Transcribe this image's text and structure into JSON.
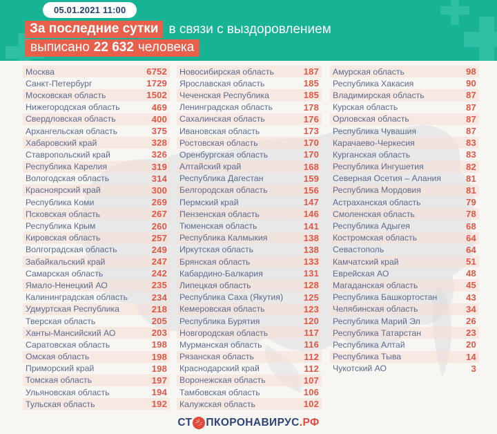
{
  "header": {
    "date_badge": "05.01.2021 11:00",
    "headline_highlight": "За последние сутки",
    "headline_rest": "в связи с выздоровлением",
    "line2_prefix": "выписано",
    "line2_number": "22 632",
    "line2_suffix": "человека"
  },
  "footer": {
    "logo_prefix": "СТ",
    "logo_middle": "ПКОРОНАВИРУС",
    "logo_suffix": ".РФ"
  },
  "colors": {
    "header_green": "#17b394",
    "plus_green": "#2ebfa2",
    "highlight_orange": "#e8604c",
    "value_red": "#e15746",
    "region_blue": "#5b6b8d",
    "logo_navy": "#2c4479",
    "logo_red": "#e2493c",
    "stripe_pink": "#f7e9e3",
    "map_gray": "#d7d9de"
  },
  "chart_data": {
    "type": "table",
    "title": "За последние сутки в связи с выздоровлением выписано 22 632 человека",
    "timestamp": "05.01.2021 11:00",
    "total_discharged": 22632,
    "columns": [
      "Регион",
      "Выписано"
    ],
    "column_groups": [
      {
        "rows": [
          [
            "Москва",
            6752
          ],
          [
            "Санкт-Петербург",
            1729
          ],
          [
            "Московская область",
            1502
          ],
          [
            "Нижегородская область",
            469
          ],
          [
            "Свердловская область",
            400
          ],
          [
            "Архангельская область",
            375
          ],
          [
            "Хабаровский край",
            328
          ],
          [
            "Ставропольский край",
            326
          ],
          [
            "Республика Карелия",
            319
          ],
          [
            "Вологодская область",
            314
          ],
          [
            "Красноярский край",
            300
          ],
          [
            "Республика Коми",
            269
          ],
          [
            "Псковская область",
            267
          ],
          [
            "Республика Крым",
            260
          ],
          [
            "Кировская область",
            257
          ],
          [
            "Волгоградская область",
            249
          ],
          [
            "Забайкальский край",
            247
          ],
          [
            "Самарская область",
            242
          ],
          [
            "Ямало-Ненецкий АО",
            235
          ],
          [
            "Калининградская область",
            234
          ],
          [
            "Удмуртская Республика",
            218
          ],
          [
            "Тверская область",
            205
          ],
          [
            "Ханты-Мансийский АО",
            203
          ],
          [
            "Саратовская область",
            198
          ],
          [
            "Омская область",
            198
          ],
          [
            "Приморский край",
            198
          ],
          [
            "Томская область",
            197
          ],
          [
            "Ульяновская область",
            194
          ],
          [
            "Тульская область",
            192
          ]
        ]
      },
      {
        "rows": [
          [
            "Новосибирская область",
            187
          ],
          [
            "Ярославская область",
            185
          ],
          [
            "Чеченская Республика",
            185
          ],
          [
            "Ленинградская область",
            178
          ],
          [
            "Сахалинская область",
            176
          ],
          [
            "Ивановская область",
            173
          ],
          [
            "Ростовская область",
            170
          ],
          [
            "Оренбургская область",
            170
          ],
          [
            "Алтайский край",
            168
          ],
          [
            "Республика Дагестан",
            159
          ],
          [
            "Белгородская область",
            156
          ],
          [
            "Пермский край",
            147
          ],
          [
            "Пензенская область",
            146
          ],
          [
            "Тюменская область",
            141
          ],
          [
            "Республика Калмыкия",
            138
          ],
          [
            "Иркутская область",
            138
          ],
          [
            "Брянская область",
            133
          ],
          [
            "Кабардино-Балкария",
            131
          ],
          [
            "Липецкая область",
            128
          ],
          [
            "Республика Саха (Якутия)",
            125
          ],
          [
            "Кемеровская область",
            123
          ],
          [
            "Республика Бурятия",
            120
          ],
          [
            "Новгородская область",
            117
          ],
          [
            "Мурманская область",
            116
          ],
          [
            "Рязанская область",
            112
          ],
          [
            "Краснодарский край",
            112
          ],
          [
            "Воронежская область",
            107
          ],
          [
            "Тамбовская область",
            106
          ],
          [
            "Калужская область",
            102
          ]
        ]
      },
      {
        "rows": [
          [
            "Амурская область",
            98
          ],
          [
            "Республика Хакасия",
            90
          ],
          [
            "Владимирская область",
            87
          ],
          [
            "Курская область",
            87
          ],
          [
            "Орловская область",
            87
          ],
          [
            "Республика Чувашия",
            87
          ],
          [
            "Карачаево-Черкесия",
            83
          ],
          [
            "Курганская область",
            83
          ],
          [
            "Республика Ингушетия",
            82
          ],
          [
            "Северная Осетия – Алания",
            81
          ],
          [
            "Республика Мордовия",
            81
          ],
          [
            "Астраханская область",
            79
          ],
          [
            "Смоленская область",
            78
          ],
          [
            "Республика Адыгея",
            68
          ],
          [
            "Костромская область",
            64
          ],
          [
            "Севастополь",
            64
          ],
          [
            "Камчатский край",
            51
          ],
          [
            "Еврейская АО",
            48
          ],
          [
            "Магаданская область",
            45
          ],
          [
            "Республика Башкортостан",
            43
          ],
          [
            "Челябинская область",
            34
          ],
          [
            "Республика Марий Эл",
            26
          ],
          [
            "Республика Татарстан",
            23
          ],
          [
            "Республика Алтай",
            20
          ],
          [
            "Республика Тыва",
            14
          ],
          [
            "Чукотский АО",
            3
          ]
        ]
      }
    ]
  }
}
